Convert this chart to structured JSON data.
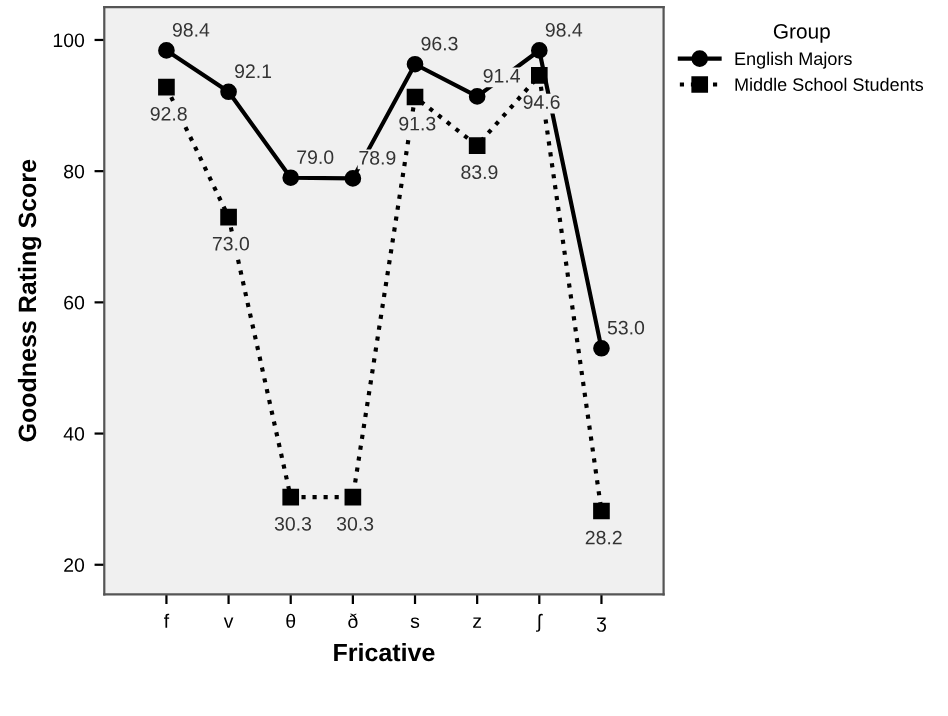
{
  "chart_data": {
    "type": "line",
    "xlabel": "Fricative",
    "ylabel": "Goodness Rating Score",
    "legend_title": "Group",
    "legend": "right",
    "categories": [
      "f",
      "v",
      "θ",
      "ð",
      "s",
      "z",
      "ʃ",
      "ʒ"
    ],
    "series": [
      {
        "name": "English Majors",
        "color": "#000000",
        "line_style": "solid",
        "marker": "circle",
        "values": [
          98.4,
          92.1,
          79.0,
          78.9,
          96.3,
          91.4,
          98.4,
          53.0
        ],
        "value_labels": [
          "98.4",
          "92.1",
          "79.0",
          "78.9",
          "96.3",
          "91.4",
          "98.4",
          "53.0"
        ]
      },
      {
        "name": "Middle School Students",
        "color": "#000000",
        "line_style": "dotted",
        "marker": "square",
        "values": [
          92.8,
          73.0,
          30.3,
          30.3,
          91.3,
          83.9,
          94.6,
          28.2
        ],
        "value_labels": [
          "92.8",
          "73.0",
          "30.3",
          "30.3",
          "91.3",
          "83.9",
          "94.6",
          "28.2"
        ]
      }
    ],
    "ylim": [
      15.5,
      105
    ],
    "yticks": [
      20,
      40,
      60,
      80,
      100
    ],
    "grid": false
  }
}
